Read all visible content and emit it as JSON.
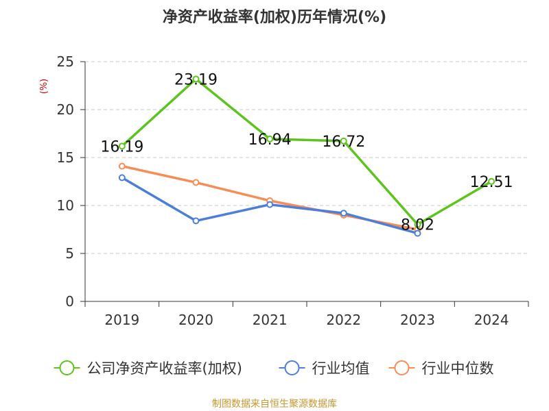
{
  "chart_data": {
    "type": "line",
    "title": "净资产收益率(加权)历年情况(%)",
    "ylabel": "(%)",
    "xlabel": "",
    "categories": [
      "2019",
      "2020",
      "2021",
      "2022",
      "2023",
      "2024"
    ],
    "ylim": [
      0,
      25
    ],
    "yticks": [
      0,
      5,
      10,
      15,
      20,
      25
    ],
    "grid": true,
    "legend_position": "bottom",
    "series": [
      {
        "name": "公司净资产收益率(加权)",
        "color": "#5cc41d",
        "values": [
          16.19,
          23.19,
          16.94,
          16.72,
          8.02,
          12.51
        ],
        "labels": [
          "16.19",
          "23.19",
          "16.94",
          "16.72",
          "8.02",
          "12.51"
        ]
      },
      {
        "name": "行业均值",
        "color": "#4b7fd9",
        "values": [
          12.9,
          8.4,
          10.1,
          9.2,
          7.1,
          null
        ]
      },
      {
        "name": "行业中位数",
        "color": "#f78c55",
        "values": [
          14.1,
          12.4,
          10.5,
          9.0,
          7.5,
          null
        ]
      }
    ]
  },
  "footer": {
    "source": "制图数据来自恒生聚源数据库"
  }
}
